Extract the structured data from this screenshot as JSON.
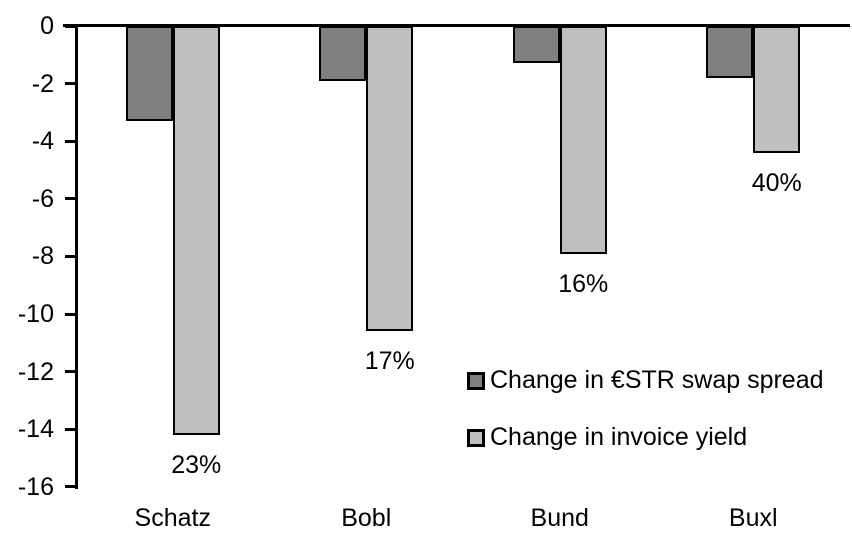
{
  "chart_data": {
    "type": "bar",
    "title": "",
    "xlabel": "",
    "ylabel": "",
    "categories": [
      "Schatz",
      "Bobl",
      "Bund",
      "Buxl"
    ],
    "series": [
      {
        "name": "Change in €STR swap spread",
        "color": "#7f7f7f",
        "values": [
          -3.3,
          -1.9,
          -1.3,
          -1.8
        ]
      },
      {
        "name": "Change in invoice yield",
        "color": "#bfbfbf",
        "values": [
          -14.2,
          -10.6,
          -7.9,
          -4.4
        ],
        "data_labels": [
          "23%",
          "17%",
          "16%",
          "40%"
        ]
      }
    ],
    "ylim": [
      -16,
      0
    ],
    "yticks": [
      0,
      -2,
      -4,
      -6,
      -8,
      -10,
      -12,
      -14,
      -16
    ],
    "grid": false,
    "legend_position": "inside-right",
    "bar_border_color": "#000000",
    "axis_color": "#000000",
    "text_color": "#000000"
  }
}
